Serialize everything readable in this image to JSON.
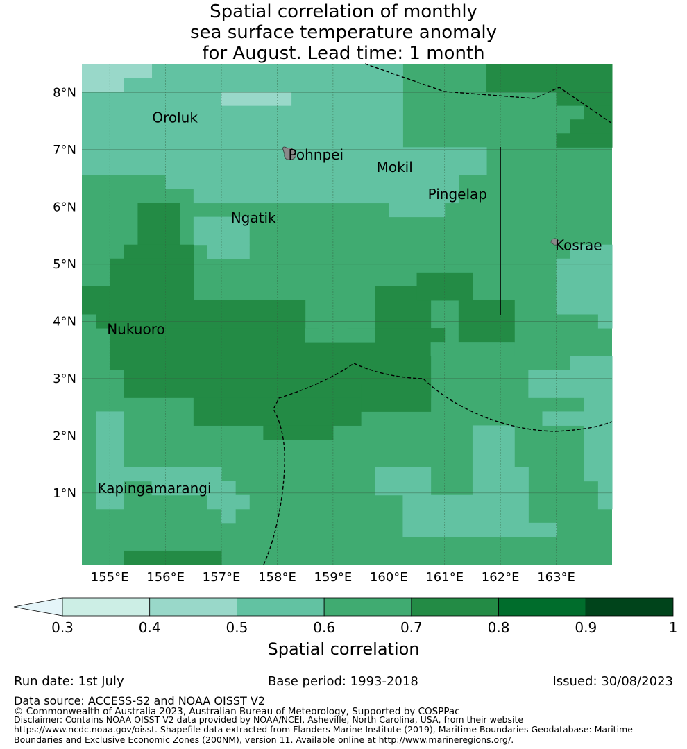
{
  "title": {
    "line1": "Spatial correlation of monthly",
    "line2": "sea surface temperature anomaly",
    "line3": "for August. Lead time: 1 month"
  },
  "map": {
    "lon_range": [
      154.5,
      164.0
    ],
    "lat_range": [
      -0.25,
      8.5
    ],
    "lon_ticks": [
      "155°E",
      "156°E",
      "157°E",
      "158°E",
      "159°E",
      "160°E",
      "161°E",
      "162°E",
      "163°E"
    ],
    "lat_ticks": [
      "8°N",
      "7°N",
      "6°N",
      "5°N",
      "4°N",
      "3°N",
      "2°N",
      "1°N"
    ],
    "grid": true,
    "places": [
      {
        "name": "Oroluk",
        "lon": 155.76,
        "lat": 7.55
      },
      {
        "name": "Pohnpei",
        "lon": 158.2,
        "lat": 6.9
      },
      {
        "name": "Mokil",
        "lon": 159.78,
        "lat": 6.68
      },
      {
        "name": "Pingelap",
        "lon": 160.7,
        "lat": 6.21
      },
      {
        "name": "Ngatik",
        "lon": 157.17,
        "lat": 5.8
      },
      {
        "name": "Kosrae",
        "lon": 162.98,
        "lat": 5.32
      },
      {
        "name": "Nukuoro",
        "lon": 154.95,
        "lat": 3.85
      },
      {
        "name": "Kapingamarangi",
        "lon": 154.78,
        "lat": 1.07
      }
    ]
  },
  "colorbar": {
    "ticks": [
      "0.3",
      "0.4",
      "0.5",
      "0.6",
      "0.7",
      "0.8",
      "0.9",
      "1"
    ],
    "colors": [
      "#cceee5",
      "#99d8c9",
      "#62c2a2",
      "#40ab71",
      "#238b45",
      "#006d2c",
      "#00441b"
    ],
    "under_color": "#e5f5f9",
    "label": "Spatial correlation"
  },
  "footer": {
    "run_date": "Run date: 1st July",
    "base_period": "Base period: 1993-2018",
    "issued": "Issued: 30/08/2023",
    "data_source": "Data source: ACCESS-S2 and NOAA OISST V2",
    "copyright": "© Commonwealth of Australia 2023, Australian Bureau of Meteorology, Supported by COSPPac",
    "disclaimer": "Disclaimer: Contains NOAA OISST V2 data provided by NOAA/NCEI, Asheville, North Carolina, USA, from their website https://www.ncdc.noaa.gov/oisst. Shapefile data extracted from Flanders Marine Institute (2019), Maritime Boundaries Geodatabase: Maritime Boundaries and Exclusive Economic Zones (200NM), version 11. Available online at http://www.marineregions.org/."
  }
}
